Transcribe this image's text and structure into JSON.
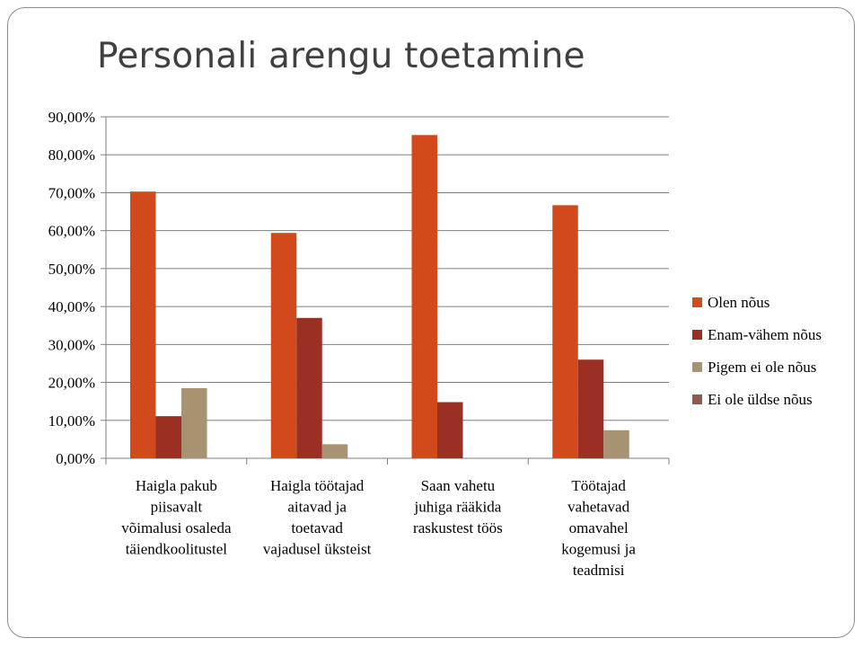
{
  "slide": {
    "title": "Personali arengu toetamine"
  },
  "colors": {
    "series": [
      "#d24a1c",
      "#9b2f23",
      "#a79272",
      "#8f5a4a"
    ],
    "grid": "#7f7f7f"
  },
  "chart_data": {
    "type": "bar",
    "categories": [
      [
        "Haigla pakub",
        "piisavalt",
        "võimalusi osaleda",
        "täiendkoolitustel"
      ],
      [
        "Haigla töötajad",
        "aitavad ja",
        "toetavad",
        "vajadusel üksteist"
      ],
      [
        "Saan vahetu",
        "juhiga rääkida",
        "raskustest töös"
      ],
      [
        "Töötajad",
        "vahetavad",
        "omavahel",
        "kogemusi ja",
        "teadmisi"
      ]
    ],
    "series": [
      {
        "name": "Olen nõus",
        "values": [
          0.703,
          0.594,
          0.852,
          0.667
        ]
      },
      {
        "name": "Enam-vähem nõus",
        "values": [
          0.111,
          0.37,
          0.148,
          0.26
        ]
      },
      {
        "name": "Pigem ei ole nõus",
        "values": [
          0.185,
          0.037,
          0.0,
          0.074
        ]
      },
      {
        "name": "Ei ole üldse nõus",
        "values": [
          0.0,
          0.0,
          0.0,
          0.0
        ]
      }
    ],
    "yticks": [
      "0,00%",
      "10,00%",
      "20,00%",
      "30,00%",
      "40,00%",
      "50,00%",
      "60,00%",
      "70,00%",
      "80,00%",
      "90,00%"
    ],
    "ylim": [
      0,
      0.9
    ],
    "grid": true,
    "legend_position": "right"
  }
}
